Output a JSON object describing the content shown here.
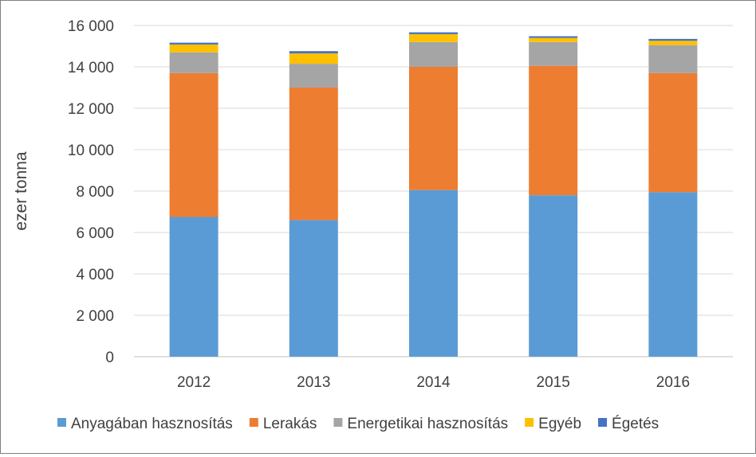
{
  "chart_data": {
    "type": "bar",
    "stacked": true,
    "categories": [
      "2012",
      "2013",
      "2014",
      "2015",
      "2016"
    ],
    "ylabel": "ezer tonna",
    "ylim": [
      0,
      16000
    ],
    "yticks": [
      {
        "value": 0,
        "label": "0"
      },
      {
        "value": 2000,
        "label": "2 000"
      },
      {
        "value": 4000,
        "label": "4 000"
      },
      {
        "value": 6000,
        "label": "6 000"
      },
      {
        "value": 8000,
        "label": "8 000"
      },
      {
        "value": 10000,
        "label": "10 000"
      },
      {
        "value": 12000,
        "label": "12 000"
      },
      {
        "value": 14000,
        "label": "14 000"
      },
      {
        "value": 16000,
        "label": "16 000"
      }
    ],
    "grid": true,
    "legend_position": "bottom",
    "series": [
      {
        "name": "Anyagában hasznosítás",
        "color": "#5b9bd5",
        "values": [
          6750,
          6600,
          8050,
          7800,
          7950
        ]
      },
      {
        "name": "Lerakás",
        "color": "#ed7d31",
        "values": [
          6950,
          6400,
          5950,
          6250,
          5750
        ]
      },
      {
        "name": "Energetikai hasznosítás",
        "color": "#a5a5a5",
        "values": [
          1000,
          1150,
          1200,
          1150,
          1350
        ]
      },
      {
        "name": "Egyéb",
        "color": "#ffc000",
        "values": [
          380,
          500,
          380,
          200,
          210
        ]
      },
      {
        "name": "Égetés",
        "color": "#4472c4",
        "values": [
          90,
          110,
          90,
          80,
          90
        ]
      }
    ]
  }
}
